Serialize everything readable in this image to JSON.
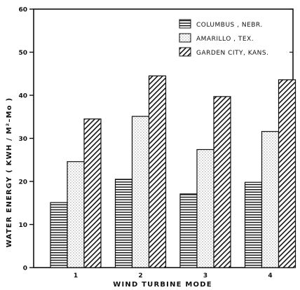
{
  "chart_data": {
    "type": "bar",
    "xlabel": "WIND TURBINE MODE",
    "ylabel": "WATER ENERGY ( KWH / M²–Mo )",
    "ylim": [
      0,
      60
    ],
    "yticks": [
      0,
      10,
      20,
      30,
      40,
      50,
      60
    ],
    "grid": false,
    "legend_position": "top-right",
    "categories": [
      "1",
      "2",
      "3",
      "4"
    ],
    "series": [
      {
        "name": "COLUMBUS , NEBR.",
        "pattern": "horizontal-lines",
        "values": [
          15.1,
          20.5,
          17.1,
          19.8
        ]
      },
      {
        "name": "AMARILLO , TEX.",
        "pattern": "dots",
        "values": [
          24.6,
          35.1,
          27.4,
          31.6
        ]
      },
      {
        "name": "GARDEN CITY, KANS.",
        "pattern": "diagonal-hatch",
        "values": [
          34.5,
          44.5,
          39.7,
          43.6
        ]
      }
    ]
  }
}
